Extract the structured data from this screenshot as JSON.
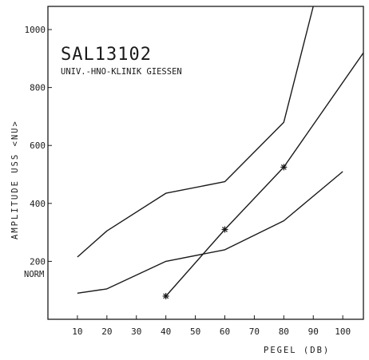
{
  "chart_data": {
    "type": "line",
    "title": "SAL13102",
    "subtitle": "UNIV.-HNO-KLINIK GIESSEN",
    "xlabel": "PEGEL (DB)",
    "ylabel": "AMPLITUDE USS <NU>",
    "xlim": [
      0,
      107
    ],
    "ylim": [
      0,
      1080
    ],
    "x_ticks": [
      10,
      20,
      30,
      40,
      50,
      60,
      70,
      80,
      90,
      100
    ],
    "y_ticks": [
      200,
      400,
      600,
      800,
      1000
    ],
    "norm_label": "NORM",
    "series": [
      {
        "style": "line",
        "x": [
          10,
          20,
          40,
          60,
          80,
          90
        ],
        "y": [
          215,
          305,
          435,
          475,
          680,
          1080
        ]
      },
      {
        "style": "line",
        "x": [
          10,
          20,
          40,
          60,
          80,
          100
        ],
        "y": [
          90,
          105,
          200,
          240,
          340,
          510
        ]
      },
      {
        "style": "line",
        "x": [
          40,
          60,
          80,
          107
        ],
        "y": [
          80,
          310,
          525,
          920
        ]
      },
      {
        "style": "markers",
        "marker": "star",
        "x": [
          40,
          60,
          80
        ],
        "y": [
          80,
          310,
          525
        ]
      }
    ]
  }
}
